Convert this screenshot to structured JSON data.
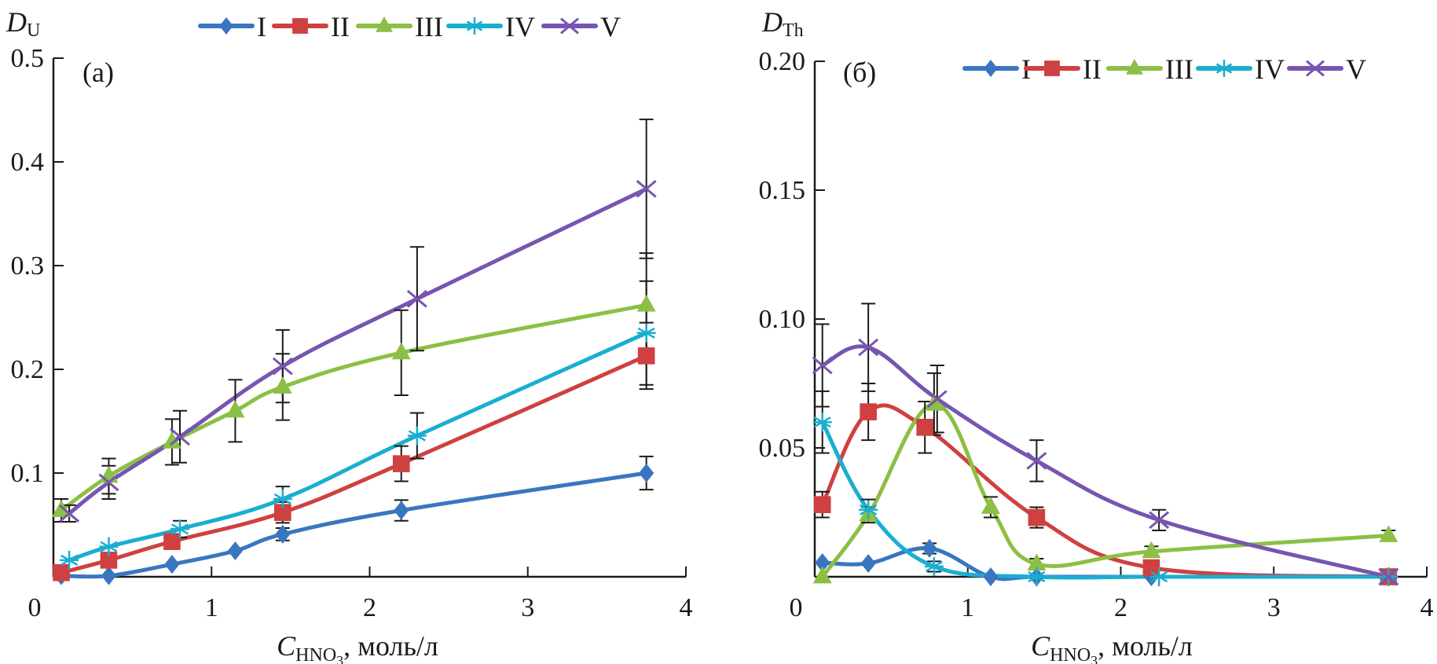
{
  "chart_data": [
    {
      "type": "line",
      "panel_label": "(a)",
      "ylabel_main": "D",
      "ylabel_sub": "U",
      "xlabel_main": "C",
      "xlabel_sub": "HNO",
      "xlabel_subsub": "3",
      "xlabel_units": ", моль/л",
      "xlim": [
        0,
        4
      ],
      "ylim": [
        0,
        0.5
      ],
      "xticks": [
        0,
        1,
        2,
        3,
        4
      ],
      "xtick_labels": [
        "0",
        "1",
        "2",
        "3",
        "4"
      ],
      "yticks": [
        0.1,
        0.2,
        0.3,
        0.4,
        0.5
      ],
      "ytick_labels": [
        "0.1",
        "0.2",
        "0.3",
        "0.4",
        "0.5"
      ],
      "grid": false,
      "legend_position": "top-center",
      "legend": [
        "I",
        "II",
        "III",
        "IV",
        "V"
      ],
      "series": [
        {
          "name": "I",
          "color": "#3a76c0",
          "marker": "diamond",
          "x": [
            0.05,
            0.35,
            0.75,
            1.15,
            1.45,
            2.2,
            3.75
          ],
          "y": [
            0.001,
            0.001,
            0.012,
            0.025,
            0.041,
            0.064,
            0.1
          ],
          "err": [
            0,
            0,
            0,
            0,
            0.006,
            0.01,
            0.016
          ]
        },
        {
          "name": "II",
          "color": "#cf4040",
          "marker": "square",
          "x": [
            0.05,
            0.35,
            0.75,
            1.45,
            2.2,
            3.75
          ],
          "y": [
            0.004,
            0.016,
            0.034,
            0.062,
            0.109,
            0.213
          ],
          "err": [
            0,
            0,
            0,
            0.01,
            0.017,
            0.032
          ]
        },
        {
          "name": "III",
          "color": "#8cbf45",
          "marker": "triangle",
          "x": [
            0.05,
            0.35,
            0.75,
            1.15,
            1.45,
            2.2,
            3.75
          ],
          "y": [
            0.064,
            0.097,
            0.13,
            0.16,
            0.183,
            0.216,
            0.262
          ],
          "err": [
            0.011,
            0.017,
            0.022,
            0.03,
            0.032,
            0.041,
            0.05
          ]
        },
        {
          "name": "IV",
          "color": "#1aaed0",
          "marker": "asterisk",
          "x": [
            0.1,
            0.35,
            0.8,
            1.45,
            2.3,
            3.75
          ],
          "y": [
            0.016,
            0.029,
            0.046,
            0.075,
            0.136,
            0.235
          ],
          "err": [
            0,
            0,
            0.008,
            0.012,
            0.022,
            0.05
          ]
        },
        {
          "name": "V",
          "color": "#7755b0",
          "marker": "cross",
          "x": [
            0.1,
            0.35,
            0.8,
            1.45,
            2.3,
            3.75
          ],
          "y": [
            0.061,
            0.091,
            0.135,
            0.203,
            0.268,
            0.374
          ],
          "err": [
            0.008,
            0.016,
            0.025,
            0.035,
            0.05,
            0.067
          ]
        }
      ]
    },
    {
      "type": "line",
      "panel_label": "(б)",
      "ylabel_main": "D",
      "ylabel_sub": "Th",
      "xlabel_main": "C",
      "xlabel_sub": "HNO",
      "xlabel_subsub": "3",
      "xlabel_units": ", моль/л",
      "xlim": [
        0,
        4
      ],
      "ylim": [
        0,
        0.2
      ],
      "xticks": [
        0,
        1,
        2,
        3,
        4
      ],
      "xtick_labels": [
        "0",
        "1",
        "2",
        "3",
        "4"
      ],
      "yticks": [
        0.05,
        0.1,
        0.15,
        0.2
      ],
      "ytick_labels": [
        "0.05",
        "0.10",
        "0.15",
        "0.20"
      ],
      "grid": false,
      "legend_position": "top-center",
      "legend": [
        "I",
        "II",
        "III",
        "IV",
        "V"
      ],
      "series": [
        {
          "name": "I",
          "color": "#3a76c0",
          "marker": "diamond",
          "x": [
            0.05,
            0.35,
            0.75,
            1.15,
            1.45,
            2.2,
            3.75
          ],
          "y": [
            0.0055,
            0.0052,
            0.011,
            0.0,
            0.0,
            0.0,
            0.0
          ],
          "err": [
            0,
            0,
            0.002,
            0,
            0,
            0,
            0
          ]
        },
        {
          "name": "II",
          "color": "#cf4040",
          "marker": "square",
          "x": [
            0.05,
            0.35,
            0.72,
            1.45,
            2.2,
            3.75
          ],
          "y": [
            0.028,
            0.064,
            0.058,
            0.023,
            0.0035,
            0.0
          ],
          "err": [
            0.005,
            0.011,
            0.01,
            0.004,
            0.001,
            0
          ]
        },
        {
          "name": "III",
          "color": "#8cbf45",
          "marker": "triangle",
          "x": [
            0.05,
            0.35,
            0.78,
            1.15,
            1.45,
            2.2,
            3.75
          ],
          "y": [
            0.0,
            0.024,
            0.067,
            0.027,
            0.005,
            0.0098,
            0.016
          ],
          "err": [
            0,
            0.003,
            0.012,
            0.004,
            0.002,
            0.002,
            0.002
          ]
        },
        {
          "name": "IV",
          "color": "#1aaed0",
          "marker": "asterisk",
          "x": [
            0.05,
            0.35,
            0.78,
            1.45,
            2.25,
            3.75
          ],
          "y": [
            0.06,
            0.026,
            0.004,
            0.0,
            0.0,
            0.0
          ],
          "err": [
            0.012,
            0.004,
            0.002,
            0,
            0,
            0
          ]
        },
        {
          "name": "V",
          "color": "#7755b0",
          "marker": "cross",
          "x": [
            0.05,
            0.35,
            0.8,
            1.45,
            2.25,
            3.75
          ],
          "y": [
            0.082,
            0.089,
            0.069,
            0.045,
            0.022,
            0.0
          ],
          "err": [
            0.016,
            0.017,
            0.013,
            0.008,
            0.004,
            0
          ]
        }
      ]
    }
  ]
}
